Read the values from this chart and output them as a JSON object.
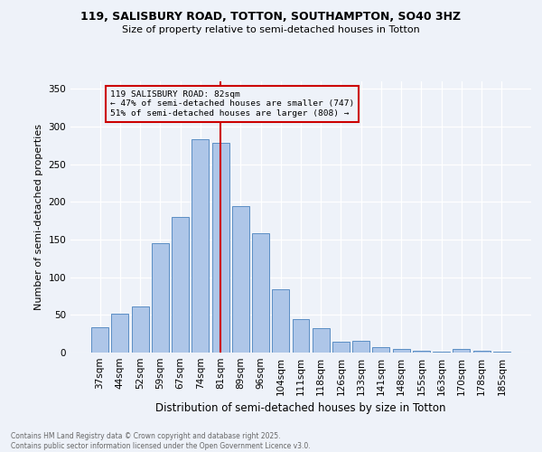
{
  "title1": "119, SALISBURY ROAD, TOTTON, SOUTHAMPTON, SO40 3HZ",
  "title2": "Size of property relative to semi-detached houses in Totton",
  "xlabel": "Distribution of semi-detached houses by size in Totton",
  "ylabel": "Number of semi-detached properties",
  "categories": [
    "37sqm",
    "44sqm",
    "52sqm",
    "59sqm",
    "67sqm",
    "74sqm",
    "81sqm",
    "89sqm",
    "96sqm",
    "104sqm",
    "111sqm",
    "118sqm",
    "126sqm",
    "133sqm",
    "141sqm",
    "148sqm",
    "155sqm",
    "163sqm",
    "170sqm",
    "178sqm",
    "185sqm"
  ],
  "values": [
    34,
    52,
    61,
    145,
    180,
    283,
    278,
    195,
    158,
    84,
    45,
    32,
    14,
    16,
    7,
    5,
    2,
    1,
    5,
    2,
    1
  ],
  "bar_color": "#aec6e8",
  "bar_edge_color": "#5b8ec4",
  "property_line_x": 6,
  "property_sqm": 82,
  "pct_smaller": 47,
  "n_smaller": 747,
  "pct_larger": 51,
  "n_larger": 808,
  "vline_color": "#cc0000",
  "annotation_box_color": "#cc0000",
  "background_color": "#eef2f9",
  "grid_color": "#ffffff",
  "ylim": [
    0,
    360
  ],
  "yticks": [
    0,
    50,
    100,
    150,
    200,
    250,
    300,
    350
  ],
  "annot_line1": "119 SALISBURY ROAD: 82sqm",
  "annot_line2": "← 47% of semi-detached houses are smaller (747)",
  "annot_line3": "51% of semi-detached houses are larger (808) →",
  "footnote": "Contains HM Land Registry data © Crown copyright and database right 2025.\nContains public sector information licensed under the Open Government Licence v3.0.",
  "footnote_color": "#666666"
}
